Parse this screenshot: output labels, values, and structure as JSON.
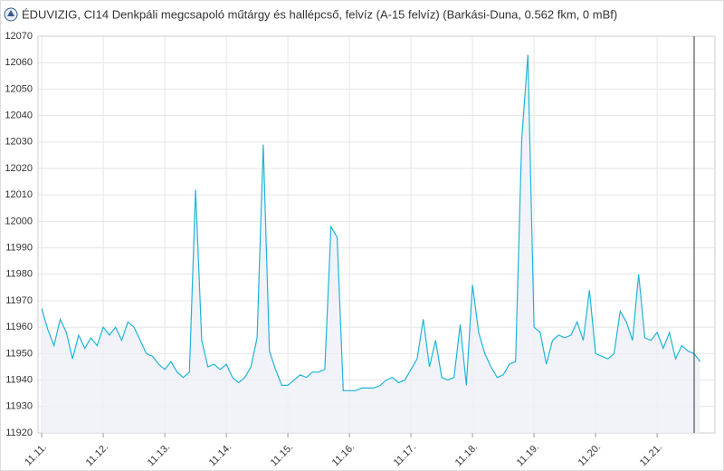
{
  "chart_data": {
    "type": "line",
    "title": "ÉDUVIZIG, CI14 Denkpáli megcsapoló műtárgy és hallépcső, felvíz (A-15 felvíz) (Barkási-Duna, 0.562 fkm, 0 mBf)",
    "x": [
      0,
      0.1,
      0.2,
      0.3,
      0.4,
      0.5,
      0.6,
      0.7,
      0.8,
      0.9,
      1,
      1.1,
      1.2,
      1.3,
      1.4,
      1.5,
      1.6,
      1.7,
      1.8,
      1.9,
      2,
      2.1,
      2.2,
      2.3,
      2.4,
      2.5,
      2.6,
      2.7,
      2.8,
      2.9,
      3,
      3.1,
      3.2,
      3.3,
      3.4,
      3.5,
      3.6,
      3.7,
      3.8,
      3.9,
      4,
      4.1,
      4.2,
      4.3,
      4.4,
      4.5,
      4.6,
      4.7,
      4.8,
      4.9,
      5,
      5.1,
      5.2,
      5.3,
      5.4,
      5.5,
      5.6,
      5.7,
      5.8,
      5.9,
      6,
      6.1,
      6.2,
      6.3,
      6.4,
      6.5,
      6.6,
      6.7,
      6.8,
      6.9,
      7,
      7.1,
      7.2,
      7.3,
      7.4,
      7.5,
      7.6,
      7.7,
      7.8,
      7.9,
      8,
      8.1,
      8.2,
      8.3,
      8.4,
      8.5,
      8.6,
      8.7,
      8.8,
      8.9,
      9,
      9.1,
      9.2,
      9.3,
      9.4,
      9.5,
      9.6,
      9.7,
      9.8,
      9.9,
      10,
      10.1,
      10.2,
      10.3,
      10.4,
      10.5,
      10.6,
      10.7
    ],
    "series": [
      {
        "color": "#1fb5d9",
        "values": [
          11967,
          11959,
          11953,
          11963,
          11958,
          11948,
          11957,
          11952,
          11956,
          11953,
          11960,
          11957,
          11960,
          11955,
          11962,
          11960,
          11955,
          11950,
          11949,
          11946,
          11944,
          11947,
          11943,
          11941,
          11943,
          12012,
          11955,
          11945,
          11946,
          11944,
          11946,
          11941,
          11939,
          11941,
          11945,
          11956,
          12029,
          11951,
          11944,
          11938,
          11938,
          11940,
          11942,
          11941,
          11943,
          11943,
          11944,
          11998,
          11994,
          11936,
          11936,
          11936,
          11937,
          11937,
          11937,
          11938,
          11940,
          11941,
          11939,
          11940,
          11944,
          11948,
          11963,
          11945,
          11955,
          11941,
          11940,
          11941,
          11961,
          11938,
          11976,
          11958,
          11950,
          11945,
          11941,
          11942,
          11946,
          11947,
          12031,
          12063,
          11960,
          11958,
          11946,
          11955,
          11957,
          11956,
          11957,
          11962,
          11955,
          11974,
          11950,
          11949,
          11948,
          11950,
          11966,
          11962,
          11955,
          11980,
          11956,
          11955,
          11958,
          11952,
          11958,
          11948,
          11953,
          11951,
          11950,
          11947
        ]
      }
    ],
    "xlim": [
      -0.06,
      10.94
    ],
    "xticks": [
      {
        "value": 0,
        "label": "11.11."
      },
      {
        "value": 1,
        "label": "11.12."
      },
      {
        "value": 2,
        "label": "11.13."
      },
      {
        "value": 3,
        "label": "11.14."
      },
      {
        "value": 4,
        "label": "11.15."
      },
      {
        "value": 5,
        "label": "11.16."
      },
      {
        "value": 6,
        "label": "11.17."
      },
      {
        "value": 7,
        "label": "11.18."
      },
      {
        "value": 8,
        "label": "11.19."
      },
      {
        "value": 9,
        "label": "11.20."
      },
      {
        "value": 10,
        "label": "11.21."
      }
    ],
    "ylim": [
      11920,
      12070
    ],
    "yticks": [
      11920,
      11930,
      11940,
      11950,
      11960,
      11970,
      11980,
      11990,
      12000,
      12010,
      12020,
      12030,
      12040,
      12050,
      12060,
      12070
    ],
    "grid": true
  }
}
